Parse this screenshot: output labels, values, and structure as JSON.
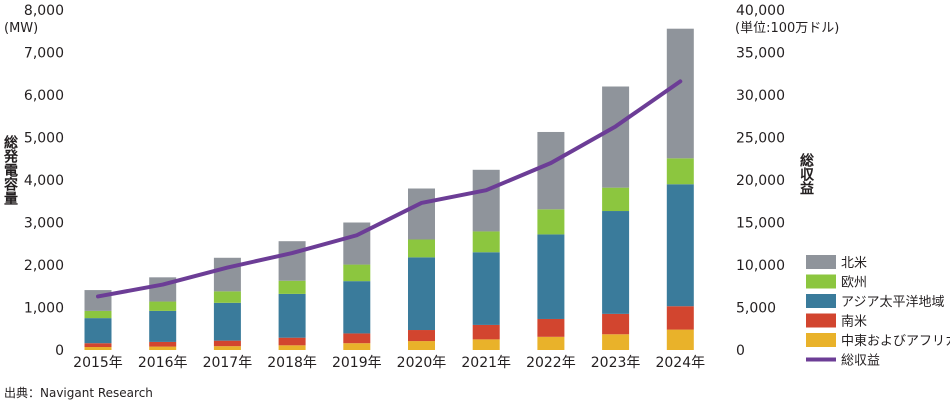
{
  "chart_data": {
    "type": "bar",
    "stacked": true,
    "categories": [
      "2015年",
      "2016年",
      "2017年",
      "2018年",
      "2019年",
      "2020年",
      "2021年",
      "2022年",
      "2023年",
      "2024年"
    ],
    "left_axis": {
      "title": "総発電容量",
      "unit": "(MW)",
      "ylim": [
        0,
        8000
      ],
      "ticks": [
        "0",
        "1,000",
        "2,000",
        "3,000",
        "4,000",
        "5,000",
        "6,000",
        "7,000",
        "8,000"
      ]
    },
    "right_axis": {
      "title": "総収益",
      "unit": "(単位:100万ドル)",
      "ylim": [
        0,
        40000
      ],
      "ticks": [
        "0",
        "5,000",
        "10,000",
        "15,000",
        "20,000",
        "25,000",
        "30,000",
        "35,000",
        "40,000"
      ]
    },
    "series": [
      {
        "name": "中東およびアフリカ",
        "color": "#e9b22a",
        "values": [
          70,
          80,
          90,
          110,
          160,
          210,
          250,
          310,
          370,
          480
        ]
      },
      {
        "name": "南米",
        "color": "#d2452f",
        "values": [
          90,
          110,
          130,
          180,
          230,
          260,
          340,
          420,
          480,
          550
        ]
      },
      {
        "name": "アジア太平洋地域",
        "color": "#3a7b9b",
        "values": [
          590,
          730,
          890,
          1030,
          1230,
          1710,
          1710,
          1990,
          2420,
          2870
        ]
      },
      {
        "name": "欧州",
        "color": "#8cc63f",
        "values": [
          170,
          220,
          270,
          310,
          390,
          420,
          490,
          590,
          550,
          610
        ]
      },
      {
        "name": "北米",
        "color": "#8f949b",
        "values": [
          490,
          570,
          790,
          930,
          990,
          1200,
          1450,
          1820,
          2380,
          3050
        ]
      }
    ],
    "line": {
      "name": "総収益",
      "color": "#6c3d96",
      "axis": "right",
      "values": [
        6300,
        7700,
        9700,
        11400,
        13500,
        17300,
        18800,
        22000,
        26300,
        31600
      ]
    },
    "legend_order": [
      "北米",
      "欧州",
      "アジア太平洋地域",
      "南米",
      "中東およびアフリカ",
      "総収益"
    ],
    "legend_position": "right",
    "grid": false
  },
  "source": "出典：Navigant Research"
}
